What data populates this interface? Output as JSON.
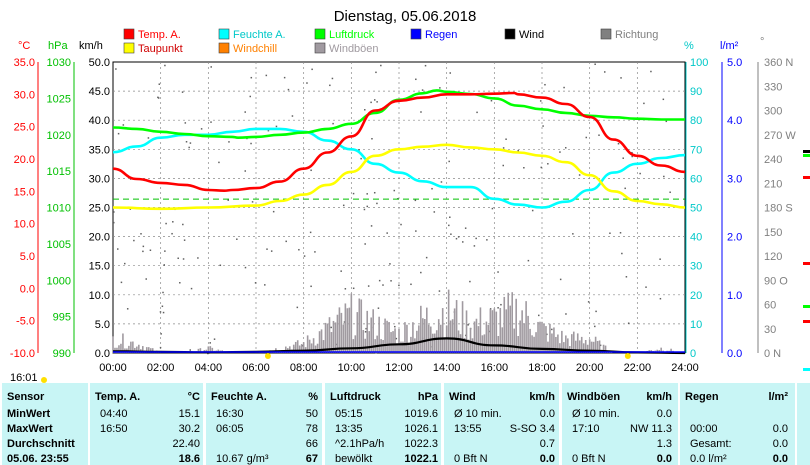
{
  "title": "Dienstag, 05.06.2018",
  "colors": {
    "temp": "#ff0000",
    "dew": "#ffff00",
    "hum": "#00ffff",
    "wind_chill": "#ff8000",
    "pressure": "#00ff00",
    "gust": "#a09aa0",
    "rain": "#0000ff",
    "wind": "#000000",
    "direction": "#808080",
    "table_bg": "#c8f5f5"
  },
  "legend": [
    {
      "label": "Temp. A.",
      "color": "#ff0000"
    },
    {
      "label": "Taupunkt",
      "color": "#ffff00"
    },
    {
      "label": "Feuchte A.",
      "color": "#00ffff"
    },
    {
      "label": "Windchill",
      "color": "#ff8000"
    },
    {
      "label": "Luftdruck",
      "color": "#00ff00"
    },
    {
      "label": "Windböen",
      "color": "#a09aa0"
    },
    {
      "label": "Regen",
      "color": "#0000ff"
    },
    {
      "label": "Wind",
      "color": "#000000"
    },
    {
      "label": "Richtung",
      "color": "#808080"
    }
  ],
  "axis_units": {
    "temp": "°C",
    "pressure": "hPa",
    "wind": "km/h",
    "hum": "%",
    "rain": "l/m²",
    "dir": "°"
  },
  "axes": {
    "temp": [
      "35.0",
      "30.0",
      "25.0",
      "20.0",
      "15.0",
      "10.0",
      "5.0",
      "0.0",
      "-5.0",
      "-10.0"
    ],
    "pressure": [
      "1030",
      "1025",
      "1020",
      "1015",
      "1010",
      "1005",
      "1000",
      "995",
      "990"
    ],
    "wind": [
      "50.0",
      "45.0",
      "40.0",
      "35.0",
      "30.0",
      "25.0",
      "20.0",
      "15.0",
      "10.0",
      "5.0",
      "0.0"
    ],
    "hum": [
      "100",
      "90",
      "80",
      "70",
      "60",
      "50",
      "40",
      "30",
      "20",
      "10",
      "0"
    ],
    "rain": [
      "5.0",
      "4.0",
      "3.0",
      "2.0",
      "1.0",
      "0.0"
    ],
    "dir": [
      "360 N",
      "330",
      "300",
      "270 W",
      "240",
      "210",
      "180 S",
      "150",
      "120",
      "90 O",
      "60",
      "30",
      "0 N"
    ],
    "time": [
      "00:00",
      "02:00",
      "04:00",
      "06:00",
      "08:00",
      "10:00",
      "12:00",
      "14:00",
      "16:00",
      "18:00",
      "20:00",
      "22:00",
      "24:00"
    ]
  },
  "sunrise_label": "16:01",
  "chart_data": {
    "type": "line",
    "title": "Dienstag, 05.06.2018",
    "x_unit": "hour",
    "xlim": [
      0,
      24
    ],
    "ylim_temp": [
      -10,
      35
    ],
    "ylim_pressure": [
      990,
      1030
    ],
    "ylim_wind": [
      0,
      50
    ],
    "ylim_humidity": [
      0,
      100
    ],
    "ylim_rain": [
      0,
      5
    ],
    "series": [
      {
        "name": "Temp. A.",
        "axis": "temp",
        "x": [
          0,
          1,
          2,
          3,
          4,
          4.67,
          5,
          6,
          7,
          8,
          9,
          10,
          11,
          12,
          13,
          14,
          15,
          16,
          16.83,
          17,
          18,
          19,
          20,
          21,
          22,
          23,
          24
        ],
        "y": [
          18.5,
          16.9,
          16.3,
          16.0,
          15.2,
          15.1,
          15.2,
          15.5,
          16.5,
          18.5,
          21.0,
          23.5,
          27.5,
          29.0,
          29.5,
          30.0,
          30.0,
          30.1,
          30.2,
          30.0,
          29.5,
          28.5,
          26.5,
          23.0,
          20.5,
          19.0,
          18.0
        ]
      },
      {
        "name": "Taupunkt",
        "axis": "temp",
        "x": [
          0,
          2,
          4,
          6,
          7,
          8,
          9,
          10,
          11,
          12,
          13,
          14,
          15,
          16,
          17,
          18,
          19,
          20,
          21,
          22,
          23,
          24
        ],
        "y": [
          12.5,
          12.3,
          12.5,
          12.8,
          13.5,
          14.5,
          16.0,
          18.0,
          20.5,
          21.5,
          21.9,
          22.2,
          21.8,
          21.5,
          21.0,
          20.5,
          19.5,
          17.5,
          15.0,
          13.5,
          13.0,
          12.5
        ]
      },
      {
        "name": "Feuchte A.",
        "axis": "hum",
        "x": [
          0,
          1,
          2,
          3,
          4,
          5,
          6,
          7,
          8,
          9,
          10,
          11,
          12,
          13,
          14,
          15,
          16,
          17,
          18,
          19,
          20,
          21,
          22,
          23,
          24
        ],
        "y": [
          69,
          71,
          74,
          75,
          75,
          76,
          77,
          77,
          76,
          73,
          70,
          65,
          62,
          59,
          57,
          57,
          53,
          51,
          50,
          52,
          56,
          62,
          65,
          67,
          68
        ]
      },
      {
        "name": "Luftdruck",
        "axis": "pressure",
        "x": [
          0,
          1,
          2,
          3,
          4,
          5,
          5.25,
          6,
          7,
          8,
          9,
          10,
          11,
          12,
          13,
          13.58,
          14,
          15,
          16,
          17,
          18,
          19,
          20,
          21,
          22,
          23,
          24
        ],
        "y": [
          1021.0,
          1020.8,
          1020.4,
          1020.1,
          1019.8,
          1019.7,
          1019.6,
          1019.7,
          1020.0,
          1020.3,
          1020.8,
          1021.5,
          1023.0,
          1024.8,
          1025.7,
          1026.1,
          1025.9,
          1025.6,
          1025.0,
          1024.0,
          1023.5,
          1023.0,
          1022.6,
          1022.4,
          1022.2,
          1022.1,
          1022.1
        ]
      },
      {
        "name": "Wind",
        "axis": "wind",
        "x": [
          0,
          2,
          4,
          6,
          8,
          10,
          12,
          14,
          16,
          18,
          20,
          22,
          24
        ],
        "y": [
          0.3,
          0.2,
          0.1,
          0.2,
          0.4,
          0.8,
          1.5,
          2.5,
          1.3,
          0.7,
          0.4,
          0.1,
          0.0
        ]
      },
      {
        "name": "Windböen",
        "axis": "wind",
        "x": [
          0,
          1,
          2,
          3,
          4,
          5,
          6,
          7,
          8,
          9,
          10,
          11,
          12,
          13,
          14,
          15,
          16,
          17,
          18,
          19,
          20,
          21,
          22,
          23,
          24
        ],
        "y": [
          3,
          2,
          0,
          0,
          1,
          0,
          0,
          1,
          2,
          5,
          8,
          6,
          4,
          7,
          9,
          6,
          7,
          9,
          5,
          3,
          3,
          0,
          0,
          1,
          0
        ]
      }
    ],
    "reference_lines": [
      {
        "axis": "temp",
        "value": 13.8,
        "color": "#00c000",
        "style": "dashed"
      }
    ]
  },
  "table": {
    "headers": {
      "sensor": "Sensor",
      "temp": "Temp. A.",
      "temp_unit": "°C",
      "hum": "Feuchte A.",
      "hum_unit": "%",
      "press": "Luftdruck",
      "press_unit": "hPa",
      "wind": "Wind",
      "wind_unit": "km/h",
      "gust": "Windböen",
      "gust_unit": "km/h",
      "rain": "Regen",
      "rain_unit": "l/m²"
    },
    "rows": [
      {
        "label": "MinWert",
        "temp_time": "04:40",
        "temp_val": "15.1",
        "hum_time": "16:30",
        "hum_val": "50",
        "press_time": "05:15",
        "press_val": "1019.6",
        "wind_text": "Ø 10 min.",
        "wind_val": "0.0",
        "gust_text": "Ø 10 min.",
        "gust_val": "0.0",
        "rain_text": "",
        "rain_val": ""
      },
      {
        "label": "MaxWert",
        "temp_time": "16:50",
        "temp_val": "30.2",
        "hum_time": "06:05",
        "hum_val": "78",
        "press_time": "13:35",
        "press_val": "1026.1",
        "wind_text": "13:55",
        "wind_val": "S-SO 3.4",
        "gust_text": "17:10",
        "gust_val": "NW 11.3",
        "rain_text": "00:00",
        "rain_val": "0.0"
      },
      {
        "label": "Durchschnitt",
        "temp_time": "",
        "temp_val": "22.40",
        "hum_time": "",
        "hum_val": "66",
        "press_time": "^2.1hPa/h",
        "press_val": "1022.3",
        "wind_text": "",
        "wind_val": "0.7",
        "gust_text": "",
        "gust_val": "1.3",
        "rain_text": "Gesamt:",
        "rain_val": "0.0"
      },
      {
        "label": "05.06. 23:55",
        "temp_time": "",
        "temp_val": "18.6",
        "hum_time": "10.67 g/m³",
        "hum_val": "67",
        "press_time": "bewölkt",
        "press_val": "1022.1",
        "wind_text": "0 Bft N",
        "wind_val": "0.0",
        "gust_text": "0 Bft N",
        "gust_val": "0.0",
        "rain_text": "0.0 l/m²",
        "rain_val": "0.0"
      }
    ]
  }
}
